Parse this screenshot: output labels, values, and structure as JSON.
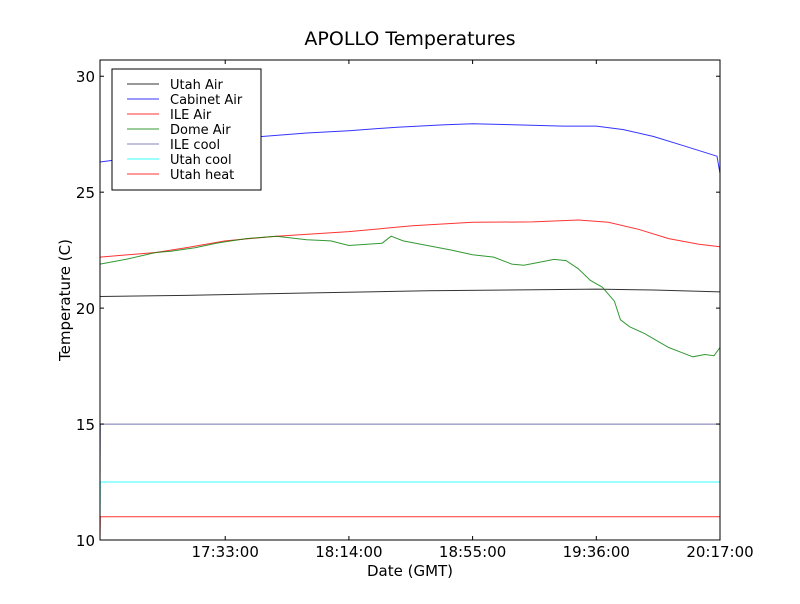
{
  "chart_data": {
    "type": "line",
    "title": "APOLLO Temperatures",
    "xlabel": "Date (GMT)",
    "ylabel": "Temperature (C)",
    "xlim_minutes": [
      1011.5,
      1217
    ],
    "ylim": [
      10,
      30.7
    ],
    "xticks": [
      {
        "value": 1053,
        "label": "17:33:00"
      },
      {
        "value": 1094,
        "label": "18:14:00"
      },
      {
        "value": 1135,
        "label": "18:55:00"
      },
      {
        "value": 1176,
        "label": "19:36:00"
      },
      {
        "value": 1217,
        "label": "20:17:00"
      }
    ],
    "yticks": [
      10,
      15,
      20,
      25,
      30
    ],
    "grid": false,
    "legend_position": "top-left",
    "series": [
      {
        "name": "Utah Air",
        "color": "#000000",
        "x": [
          1011.5,
          1040,
          1080,
          1120,
          1160,
          1176,
          1195,
          1217
        ],
        "y": [
          20.5,
          20.55,
          20.65,
          20.75,
          20.8,
          20.82,
          20.78,
          20.7
        ]
      },
      {
        "name": "Cabinet Air",
        "color": "#0000ff",
        "x": [
          1011.5,
          1020,
          1030,
          1045,
          1060,
          1080,
          1094,
          1110,
          1125,
          1135,
          1150,
          1165,
          1176,
          1185,
          1195,
          1205,
          1216,
          1217
        ],
        "y": [
          26.3,
          26.45,
          26.8,
          27.1,
          27.35,
          27.55,
          27.65,
          27.8,
          27.9,
          27.95,
          27.9,
          27.85,
          27.85,
          27.7,
          27.4,
          27.0,
          26.55,
          25.8
        ]
      },
      {
        "name": "ILE Air",
        "color": "#ff0000",
        "x": [
          1011.5,
          1030,
          1040,
          1053,
          1070,
          1094,
          1115,
          1135,
          1155,
          1170,
          1180,
          1190,
          1200,
          1210,
          1217
        ],
        "y": [
          22.2,
          22.4,
          22.6,
          22.9,
          23.1,
          23.3,
          23.55,
          23.7,
          23.72,
          23.8,
          23.7,
          23.4,
          23.0,
          22.75,
          22.65
        ]
      },
      {
        "name": "Dome Air",
        "color": "#008000",
        "x": [
          1011.5,
          1020,
          1030,
          1035,
          1043,
          1050,
          1055,
          1060,
          1070,
          1080,
          1088,
          1094,
          1100,
          1105,
          1108,
          1112,
          1120,
          1128,
          1135,
          1142,
          1148,
          1152,
          1158,
          1162,
          1166,
          1170,
          1174,
          1178,
          1182,
          1184,
          1187,
          1192,
          1196,
          1200,
          1204,
          1208,
          1212,
          1215,
          1217
        ],
        "y": [
          21.9,
          22.1,
          22.4,
          22.45,
          22.6,
          22.8,
          22.9,
          23.0,
          23.1,
          22.95,
          22.9,
          22.7,
          22.75,
          22.8,
          23.1,
          22.9,
          22.7,
          22.5,
          22.3,
          22.2,
          21.9,
          21.85,
          22.0,
          22.1,
          22.05,
          21.7,
          21.2,
          20.9,
          20.3,
          19.5,
          19.2,
          18.9,
          18.6,
          18.3,
          18.1,
          17.9,
          18.0,
          17.95,
          18.3
        ]
      },
      {
        "name": "ILE cool",
        "color": "#6666aa",
        "x": [
          1011.5,
          1011.6,
          1217
        ],
        "y": [
          12.5,
          15,
          15
        ]
      },
      {
        "name": "Utah cool",
        "color": "#00ffff",
        "x": [
          1011.5,
          1011.6,
          1217
        ],
        "y": [
          11.0,
          12.5,
          12.5
        ]
      },
      {
        "name": "Utah heat",
        "color": "#ff0000",
        "x": [
          1011.5,
          1011.6,
          1217
        ],
        "y": [
          10.0,
          11,
          11
        ]
      }
    ]
  }
}
